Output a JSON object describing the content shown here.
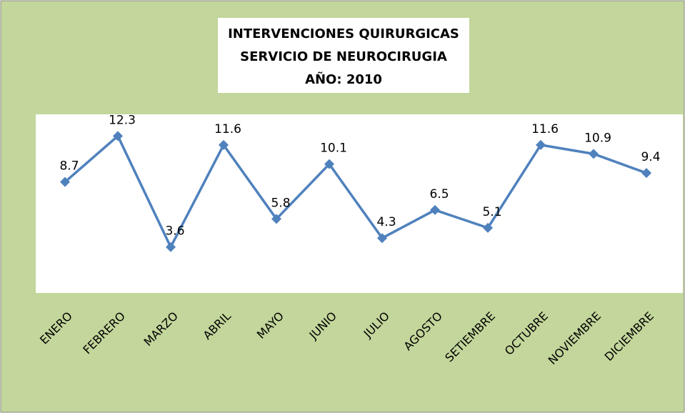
{
  "chart_data": {
    "type": "line",
    "title": [
      "INTERVENCIONES QUIRURGICAS",
      "SERVICIO DE NEUROCIRUGIA",
      "AÑO: 2010"
    ],
    "categories": [
      "ENERO",
      "FEBRERO",
      "MARZO",
      "ABRIL",
      "MAYO",
      "JUNIO",
      "JULIO",
      "AGOSTO",
      "SETIEMBRE",
      "OCTUBRE",
      "NOVIEMBRE",
      "DICIEMBRE"
    ],
    "values": [
      8.7,
      12.3,
      3.6,
      11.6,
      5.8,
      10.1,
      4.3,
      6.5,
      5.1,
      11.6,
      10.9,
      9.4
    ],
    "color": "#4f81bd",
    "ylim": [
      0,
      14
    ]
  }
}
